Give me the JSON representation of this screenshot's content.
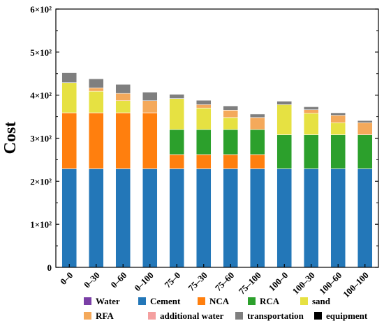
{
  "chart_data": {
    "type": "bar",
    "stacked": true,
    "title": "",
    "xlabel": "",
    "ylabel": "Cost",
    "ylim": [
      0,
      600
    ],
    "yticks": [
      0,
      100,
      200,
      300,
      400,
      500,
      600
    ],
    "ytick_labels": [
      "0",
      "1×10²",
      "2×10²",
      "3×10²",
      "4×10²",
      "5×10²",
      "6×10²"
    ],
    "categories": [
      "0–0",
      "0–30",
      "0–60",
      "0–100",
      "75–0",
      "75–30",
      "75–60",
      "75–100",
      "100–0",
      "100–30",
      "100–60",
      "100–100"
    ],
    "legend": "bottom",
    "grid": false,
    "series": [
      {
        "name": "Water",
        "color": "#7a3fa6",
        "values": [
          0,
          0,
          0,
          0,
          0,
          0,
          0,
          0,
          0,
          0,
          0,
          0
        ]
      },
      {
        "name": "Cement",
        "color": "#2377b8",
        "values": [
          229,
          229,
          229,
          229,
          229,
          229,
          229,
          229,
          229,
          229,
          229,
          229
        ]
      },
      {
        "name": "NCA",
        "color": "#ff7f0e",
        "values": [
          130,
          130,
          130,
          130,
          33,
          33,
          33,
          33,
          0,
          0,
          0,
          0
        ]
      },
      {
        "name": "RCA",
        "color": "#2ca02c",
        "values": [
          0,
          0,
          0,
          0,
          58,
          58,
          58,
          58,
          79,
          79,
          79,
          79
        ]
      },
      {
        "name": "sand",
        "color": "#e6e142",
        "values": [
          70,
          50,
          28,
          0,
          72,
          50,
          28,
          0,
          70,
          50,
          28,
          0
        ]
      },
      {
        "name": "RFA",
        "color": "#f4a95b",
        "values": [
          0,
          8,
          17,
          28,
          0,
          8,
          17,
          28,
          0,
          8,
          17,
          28
        ]
      },
      {
        "name": "additional water",
        "color": "#f4a0a0",
        "values": [
          0,
          0,
          0,
          0,
          0,
          0,
          0,
          0,
          0,
          0,
          0,
          0
        ]
      },
      {
        "name": "transportation",
        "color": "#7f7f7f",
        "values": [
          23,
          21,
          21,
          20,
          10,
          10,
          10,
          8,
          8,
          7,
          6,
          5
        ]
      },
      {
        "name": "equipment",
        "color": "#000000",
        "values": [
          0,
          0,
          0,
          0,
          0,
          0,
          0,
          0,
          0,
          0,
          0,
          0
        ]
      }
    ]
  }
}
